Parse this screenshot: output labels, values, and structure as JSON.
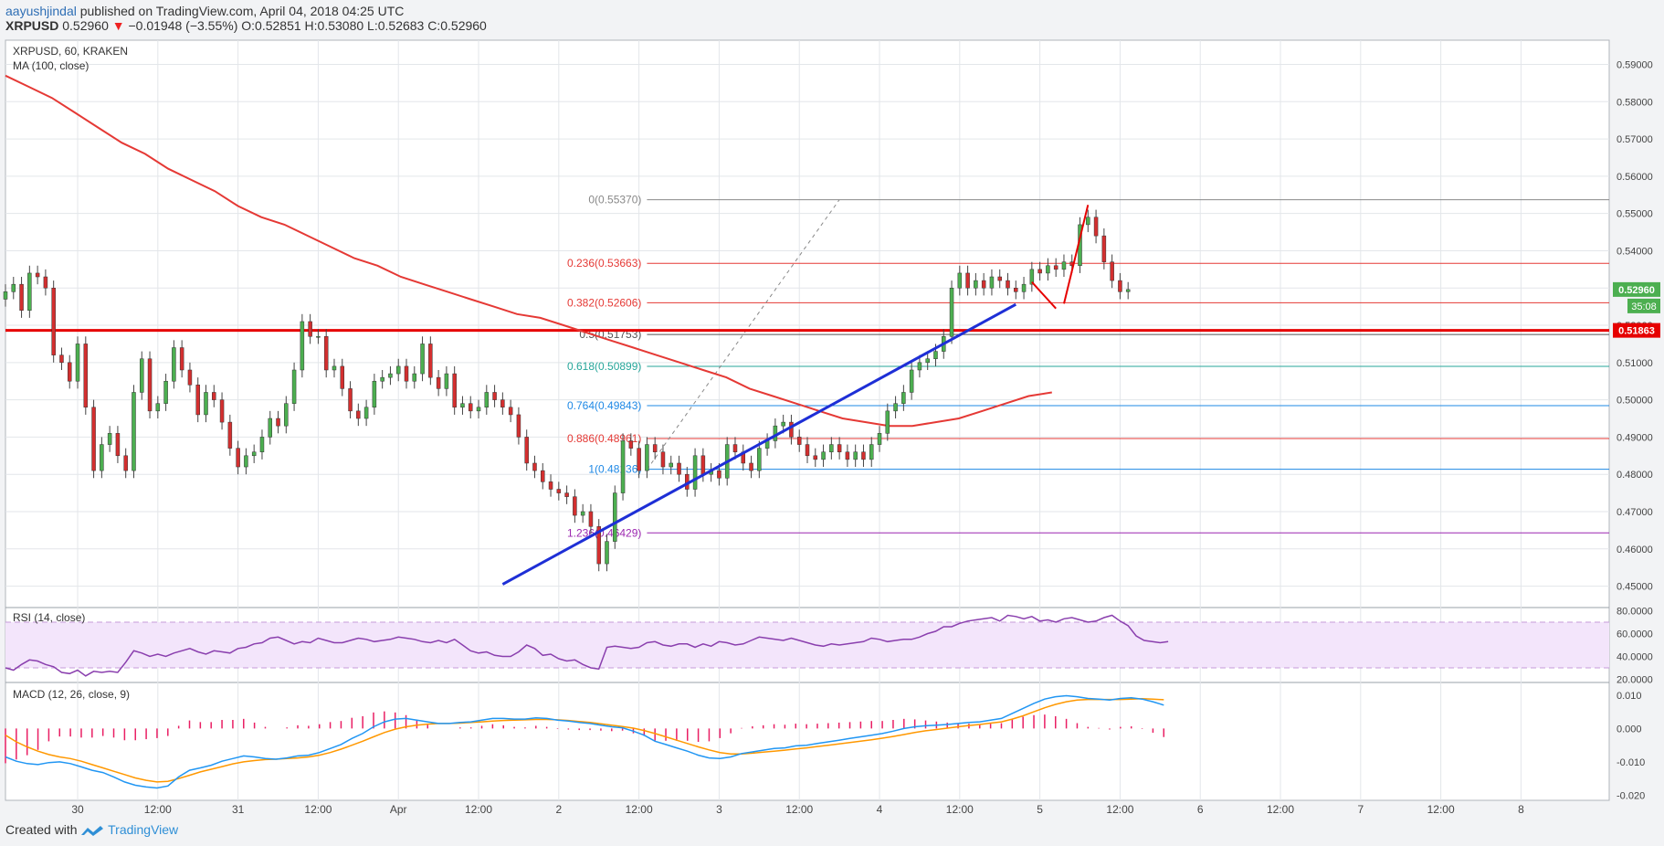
{
  "header": {
    "user": "aayushjindal",
    "published": "published on TradingView.com, April 04, 2018 04:25 UTC",
    "symbol": "XRPUSD",
    "price": "0.52960",
    "change": "−0.01948 (−3.55%)",
    "o_label": "O:",
    "o": "0.52851",
    "h_label": "H:",
    "h": "0.53080",
    "l_label": "L:",
    "l": "0.52683",
    "c_label": "C:",
    "c": "0.52960"
  },
  "footer": {
    "created_with": "Created with",
    "brand": "TradingView"
  },
  "colors": {
    "up": "#4caf50",
    "down": "#d32f2f",
    "ma": "#e53935",
    "trend": "#1e2fd6",
    "support": "#e60000",
    "rsi": "#8a3fae",
    "macd": "#2196f3",
    "signal": "#ff9800",
    "hist": "#e91e63"
  },
  "chart_data": [
    {
      "type": "candlestick",
      "legend": [
        "XRPUSD, 60, KRAKEN",
        "MA (100, close)"
      ],
      "yticks": [
        "0.45000",
        "0.46000",
        "0.47000",
        "0.48000",
        "0.49000",
        "0.50000",
        "0.51000",
        "0.52000",
        "0.53000",
        "0.54000",
        "0.55000",
        "0.56000",
        "0.57000",
        "0.58000",
        "0.59000"
      ],
      "ylim": [
        0.4445,
        0.5965
      ],
      "xlim": [
        0,
        200
      ],
      "xticks": [
        {
          "x": 9,
          "label": "30"
        },
        {
          "x": 19,
          "label": "12:00"
        },
        {
          "x": 29,
          "label": "31"
        },
        {
          "x": 39,
          "label": "12:00"
        },
        {
          "x": 49,
          "label": "Apr"
        },
        {
          "x": 59,
          "label": "12:00"
        },
        {
          "x": 69,
          "label": "2"
        },
        {
          "x": 79,
          "label": "12:00"
        },
        {
          "x": 89,
          "label": "3"
        },
        {
          "x": 99,
          "label": "12:00"
        },
        {
          "x": 109,
          "label": "4"
        },
        {
          "x": 119,
          "label": "12:00"
        },
        {
          "x": 129,
          "label": "5"
        },
        {
          "x": 139,
          "label": "12:00"
        },
        {
          "x": 149,
          "label": "6"
        },
        {
          "x": 159,
          "label": "12:00"
        },
        {
          "x": 169,
          "label": "7"
        },
        {
          "x": 179,
          "label": "12:00"
        },
        {
          "x": 189,
          "label": "8"
        }
      ],
      "close": [
        0.529,
        0.531,
        0.524,
        0.534,
        0.533,
        0.53,
        0.512,
        0.51,
        0.505,
        0.515,
        0.498,
        0.481,
        0.488,
        0.491,
        0.485,
        0.481,
        0.502,
        0.511,
        0.497,
        0.499,
        0.505,
        0.514,
        0.508,
        0.504,
        0.496,
        0.502,
        0.5,
        0.494,
        0.487,
        0.482,
        0.485,
        0.486,
        0.49,
        0.495,
        0.493,
        0.499,
        0.508,
        0.521,
        0.517,
        0.517,
        0.508,
        0.509,
        0.503,
        0.497,
        0.495,
        0.498,
        0.505,
        0.506,
        0.507,
        0.509,
        0.505,
        0.507,
        0.515,
        0.506,
        0.503,
        0.507,
        0.498,
        0.499,
        0.497,
        0.498,
        0.502,
        0.5,
        0.498,
        0.496,
        0.49,
        0.483,
        0.481,
        0.478,
        0.476,
        0.475,
        0.474,
        0.469,
        0.47,
        0.466,
        0.456,
        0.462,
        0.475,
        0.489,
        0.487,
        0.481,
        0.488,
        0.486,
        0.482,
        0.483,
        0.48,
        0.476,
        0.485,
        0.48,
        0.481,
        0.479,
        0.488,
        0.486,
        0.483,
        0.481,
        0.487,
        0.489,
        0.493,
        0.494,
        0.49,
        0.488,
        0.485,
        0.484,
        0.486,
        0.488,
        0.486,
        0.484,
        0.486,
        0.484,
        0.488,
        0.491,
        0.497,
        0.499,
        0.502,
        0.508,
        0.51,
        0.511,
        0.513,
        0.517,
        0.53,
        0.534,
        0.53,
        0.532,
        0.53,
        0.533,
        0.532,
        0.53,
        0.529,
        0.531,
        0.535,
        0.534,
        0.536,
        0.535,
        0.537,
        0.536,
        0.547,
        0.549,
        0.544,
        0.537,
        0.532,
        0.529,
        0.5296
      ],
      "open": [
        0.527,
        0.529,
        0.531,
        0.524,
        0.534,
        0.533,
        0.53,
        0.512,
        0.51,
        0.505,
        0.515,
        0.498,
        0.481,
        0.488,
        0.491,
        0.485,
        0.481,
        0.502,
        0.511,
        0.497,
        0.499,
        0.505,
        0.514,
        0.508,
        0.504,
        0.496,
        0.502,
        0.5,
        0.494,
        0.487,
        0.482,
        0.485,
        0.486,
        0.49,
        0.495,
        0.493,
        0.499,
        0.508,
        0.521,
        0.517,
        0.517,
        0.508,
        0.509,
        0.503,
        0.497,
        0.495,
        0.498,
        0.505,
        0.506,
        0.507,
        0.509,
        0.505,
        0.507,
        0.515,
        0.506,
        0.503,
        0.507,
        0.498,
        0.499,
        0.497,
        0.498,
        0.502,
        0.5,
        0.498,
        0.496,
        0.49,
        0.483,
        0.481,
        0.478,
        0.476,
        0.475,
        0.474,
        0.469,
        0.47,
        0.466,
        0.456,
        0.462,
        0.475,
        0.489,
        0.487,
        0.481,
        0.488,
        0.486,
        0.482,
        0.483,
        0.48,
        0.476,
        0.485,
        0.48,
        0.481,
        0.479,
        0.488,
        0.486,
        0.483,
        0.481,
        0.487,
        0.489,
        0.493,
        0.494,
        0.49,
        0.488,
        0.485,
        0.484,
        0.486,
        0.488,
        0.486,
        0.484,
        0.486,
        0.484,
        0.488,
        0.491,
        0.497,
        0.499,
        0.502,
        0.508,
        0.51,
        0.511,
        0.513,
        0.517,
        0.53,
        0.534,
        0.53,
        0.532,
        0.53,
        0.533,
        0.532,
        0.53,
        0.529,
        0.531,
        0.535,
        0.534,
        0.536,
        0.535,
        0.537,
        0.536,
        0.547,
        0.549,
        0.544,
        0.537,
        0.532,
        0.529
      ],
      "ma100": [
        0.587,
        0.584,
        0.581,
        0.577,
        0.573,
        0.569,
        0.566,
        0.562,
        0.559,
        0.556,
        0.552,
        0.549,
        0.547,
        0.544,
        0.541,
        0.538,
        0.536,
        0.533,
        0.531,
        0.529,
        0.527,
        0.525,
        0.523,
        0.522,
        0.52,
        0.518,
        0.516,
        0.514,
        0.512,
        0.51,
        0.508,
        0.506,
        0.503,
        0.501,
        0.499,
        0.497,
        0.495,
        0.494,
        0.493,
        0.493,
        0.494,
        0.495,
        0.497,
        0.499,
        0.501,
        0.502
      ],
      "ma_start": 0,
      "ma_step": 2.9,
      "fib_levels": [
        {
          "ratio": "0",
          "value": 0.5537,
          "label": "0(0.55370)",
          "color": "#888888"
        },
        {
          "ratio": "0.236",
          "value": 0.53663,
          "label": "0.236(0.53663)",
          "color": "#e53935"
        },
        {
          "ratio": "0.382",
          "value": 0.52606,
          "label": "0.382(0.52606)",
          "color": "#e53935"
        },
        {
          "ratio": "0.5",
          "value": 0.51753,
          "label": "0.5(0.51753)",
          "color": "#555555"
        },
        {
          "ratio": "0.618",
          "value": 0.50899,
          "label": "0.618(0.50899)",
          "color": "#26a69a"
        },
        {
          "ratio": "0.764",
          "value": 0.49843,
          "label": "0.764(0.49843)",
          "color": "#1e88e5"
        },
        {
          "ratio": "0.886",
          "value": 0.48961,
          "label": "0.886(0.48961)",
          "color": "#e53935"
        },
        {
          "ratio": "1",
          "value": 0.48136,
          "label": "1(0.48136)",
          "color": "#1e88e5"
        },
        {
          "ratio": "1.236",
          "value": 0.46429,
          "label": "1.236(0.46429)",
          "color": "#9c27b0"
        }
      ],
      "support_level": 0.51863,
      "support_label": "0.51863",
      "last_price_label": "0.52960",
      "countdown_label": "35:08",
      "trendline": [
        [
          62,
          0.4505
        ],
        [
          126,
          0.5256
        ]
      ],
      "fib_dashed": [
        [
          80,
          0.4813
        ],
        [
          104,
          0.5537
        ]
      ]
    },
    {
      "type": "line",
      "legend": "RSI (14, close)",
      "yticks": [
        "20.0000",
        "40.0000",
        "60.0000",
        "80.0000"
      ],
      "band": [
        30,
        70
      ],
      "ylim": [
        18,
        82
      ],
      "step": 2.9,
      "values": [
        30,
        28,
        33,
        37,
        36,
        33,
        31,
        26,
        25,
        28,
        23,
        27,
        26,
        27,
        26,
        35,
        45,
        43,
        40,
        42,
        40,
        43,
        45,
        47,
        44,
        42,
        45,
        44,
        43,
        47,
        48,
        51,
        52,
        56,
        57,
        54,
        51,
        53,
        52,
        56,
        54,
        52,
        52,
        54,
        56,
        55,
        53,
        54,
        55,
        57,
        56,
        55,
        53,
        52,
        54,
        52,
        55,
        50,
        45,
        43,
        44,
        41,
        40,
        40,
        44,
        50,
        47,
        41,
        42,
        38,
        36,
        37,
        33,
        30,
        29,
        48,
        49,
        48,
        47,
        48,
        52,
        53,
        50,
        49,
        51,
        51,
        48,
        51,
        49,
        53,
        52,
        50,
        51,
        54,
        57,
        56,
        55,
        54,
        56,
        54,
        52,
        50,
        49,
        51,
        50,
        51,
        52,
        53,
        56,
        55,
        53,
        54,
        55,
        55,
        57,
        60,
        62,
        66,
        66,
        69,
        71,
        72,
        73,
        74,
        71,
        76,
        75,
        73,
        75,
        71,
        72,
        70,
        73,
        74,
        72,
        70,
        71,
        74,
        76,
        71,
        67,
        58,
        54,
        53,
        52,
        53
      ]
    },
    {
      "type": "histogram",
      "legend": "MACD (12, 26, close, 9)",
      "yticks": [
        "0.010",
        "0.000",
        "-0.010",
        "-0.020"
      ],
      "ylim": [
        -0.0215,
        0.0135
      ],
      "step": 2.9,
      "macd": [
        -0.0085,
        -0.0098,
        -0.0105,
        -0.0108,
        -0.0102,
        -0.01,
        -0.0105,
        -0.0115,
        -0.0125,
        -0.0132,
        -0.0145,
        -0.016,
        -0.017,
        -0.0175,
        -0.0178,
        -0.0172,
        -0.0145,
        -0.0125,
        -0.0118,
        -0.011,
        -0.0098,
        -0.009,
        -0.0082,
        -0.0085,
        -0.009,
        -0.0092,
        -0.0088,
        -0.0082,
        -0.008,
        -0.0072,
        -0.006,
        -0.0048,
        -0.003,
        -0.0015,
        0.0005,
        0.002,
        0.0028,
        0.003,
        0.0025,
        0.002,
        0.0015,
        0.0015,
        0.0018,
        0.002,
        0.0025,
        0.003,
        0.003,
        0.0028,
        0.0028,
        0.0032,
        0.003,
        0.0025,
        0.0022,
        0.0018,
        0.0015,
        0.001,
        0.0005,
        0.0002,
        -0.0008,
        -0.002,
        -0.0038,
        -0.0048,
        -0.0058,
        -0.0068,
        -0.008,
        -0.0088,
        -0.009,
        -0.0085,
        -0.0075,
        -0.007,
        -0.0065,
        -0.006,
        -0.0058,
        -0.0052,
        -0.005,
        -0.0045,
        -0.004,
        -0.0035,
        -0.003,
        -0.0025,
        -0.002,
        -0.0015,
        -0.0008,
        0.0,
        0.0005,
        0.0008,
        0.001,
        0.0012,
        0.0015,
        0.0018,
        0.002,
        0.0025,
        0.003,
        0.0045,
        0.006,
        0.0075,
        0.0088,
        0.0095,
        0.0098,
        0.0095,
        0.009,
        0.0088,
        0.0085,
        0.009,
        0.0092,
        0.0088,
        0.008,
        0.007
      ],
      "signal": [
        -0.002,
        -0.004,
        -0.0055,
        -0.0068,
        -0.0078,
        -0.0085,
        -0.009,
        -0.0098,
        -0.0108,
        -0.0118,
        -0.0128,
        -0.0138,
        -0.0148,
        -0.0155,
        -0.016,
        -0.0158,
        -0.015,
        -0.014,
        -0.013,
        -0.0122,
        -0.0114,
        -0.0106,
        -0.01,
        -0.0096,
        -0.0093,
        -0.0092,
        -0.009,
        -0.0088,
        -0.0085,
        -0.008,
        -0.0072,
        -0.0062,
        -0.005,
        -0.0038,
        -0.0025,
        -0.0012,
        -0.0002,
        0.0005,
        0.001,
        0.0013,
        0.0015,
        0.0015,
        0.0016,
        0.0018,
        0.002,
        0.0022,
        0.0024,
        0.0025,
        0.0026,
        0.0027,
        0.0027,
        0.0026,
        0.0024,
        0.0021,
        0.0018,
        0.0014,
        0.001,
        0.0006,
        0.0001,
        -0.0006,
        -0.0015,
        -0.0025,
        -0.0035,
        -0.0045,
        -0.0055,
        -0.0064,
        -0.0072,
        -0.0076,
        -0.0076,
        -0.0074,
        -0.0071,
        -0.0068,
        -0.0065,
        -0.0061,
        -0.0058,
        -0.0054,
        -0.005,
        -0.0046,
        -0.0042,
        -0.0038,
        -0.0034,
        -0.0029,
        -0.0024,
        -0.0018,
        -0.0012,
        -0.0007,
        -0.0003,
        0.0001,
        0.0005,
        0.0009,
        0.0012,
        0.0016,
        0.002,
        0.0028,
        0.0038,
        0.005,
        0.0062,
        0.0072,
        0.008,
        0.0085,
        0.0087,
        0.0087,
        0.0087,
        0.0087,
        0.0088,
        0.0089,
        0.0088,
        0.0086
      ]
    }
  ]
}
